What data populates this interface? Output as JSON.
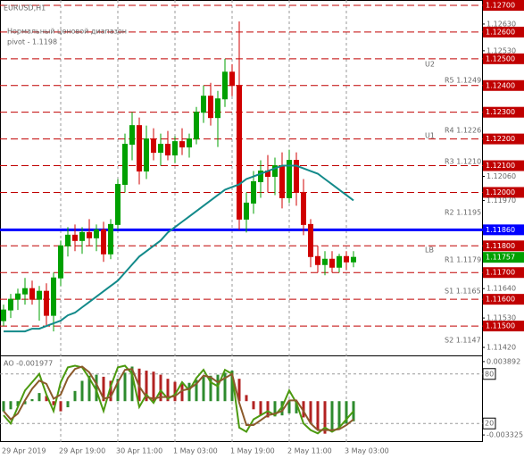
{
  "chart_data": [
    {
      "type": "candlestick",
      "title": "EURUSD,H1",
      "annotations": [
        "Нормальный ценовой диапазон",
        "pivot - 1.1198",
        "U2",
        "U1",
        "LB",
        "R5 1.1249",
        "R4 1.1226",
        "R3 1.1210",
        "R2 1.1195",
        "R1 1.1179",
        "S1 1.1165",
        "S2 1.1147"
      ],
      "categories": [
        "29 Apr 2019",
        null,
        null,
        null,
        null,
        null,
        null,
        null,
        "29 Apr 19:00",
        null,
        null,
        null,
        null,
        null,
        null,
        null,
        "30 Apr 11:00",
        null,
        null,
        null,
        null,
        null,
        null,
        null,
        "1 May 03:00",
        null,
        null,
        null,
        null,
        null,
        null,
        null,
        "1 May 19:00",
        null,
        null,
        null,
        null,
        null,
        null,
        null,
        "2 May 11:00",
        null,
        null,
        null,
        null,
        null,
        null,
        null,
        "3 May 03:00",
        null
      ],
      "open": [
        1.1152,
        1.1156,
        1.116,
        1.1162,
        1.1164,
        1.116,
        1.1163,
        1.1154,
        1.1168,
        1.118,
        1.1184,
        1.1182,
        1.1185,
        1.1183,
        1.1186,
        1.1177,
        1.1188,
        1.1203,
        1.1218,
        1.1225,
        1.1208,
        1.122,
        1.1215,
        1.1218,
        1.1214,
        1.1219,
        1.1217,
        1.122,
        1.123,
        1.1236,
        1.1228,
        1.1235,
        1.1245,
        1.124,
        1.119,
        1.1196,
        1.1204,
        1.1208,
        1.1206,
        1.121,
        1.1198,
        1.1212,
        1.12,
        1.1188,
        1.1176,
        1.1173,
        1.1175,
        1.1172,
        1.1176,
        1.1174
      ],
      "high": [
        1.1158,
        1.1162,
        1.1164,
        1.1168,
        1.1167,
        1.1165,
        1.1166,
        1.117,
        1.1182,
        1.1187,
        1.1188,
        1.1187,
        1.119,
        1.1188,
        1.1189,
        1.119,
        1.1205,
        1.1222,
        1.123,
        1.1228,
        1.1225,
        1.1224,
        1.1222,
        1.1223,
        1.1221,
        1.1224,
        1.1222,
        1.1232,
        1.124,
        1.1241,
        1.1238,
        1.125,
        1.1248,
        1.1264,
        1.12,
        1.1208,
        1.1212,
        1.1214,
        1.1213,
        1.1215,
        1.1216,
        1.1215,
        1.1205,
        1.119,
        1.118,
        1.1178,
        1.1178,
        1.1177,
        1.1178,
        1.1178
      ],
      "low": [
        1.115,
        1.1153,
        1.1156,
        1.1158,
        1.1158,
        1.1152,
        1.115,
        1.1148,
        1.1165,
        1.1176,
        1.1178,
        1.1177,
        1.118,
        1.1178,
        1.1174,
        1.1175,
        1.1186,
        1.12,
        1.1212,
        1.1203,
        1.1205,
        1.1212,
        1.121,
        1.1212,
        1.1211,
        1.1214,
        1.1213,
        1.1218,
        1.1226,
        1.1225,
        1.1217,
        1.1232,
        1.1236,
        1.1186,
        1.1185,
        1.1192,
        1.1198,
        1.12,
        1.1199,
        1.1194,
        1.1196,
        1.1195,
        1.1184,
        1.1172,
        1.117,
        1.1169,
        1.117,
        1.117,
        1.1171,
        1.1172
      ],
      "close": [
        1.1156,
        1.116,
        1.1162,
        1.1164,
        1.116,
        1.1163,
        1.1154,
        1.1168,
        1.118,
        1.1184,
        1.1182,
        1.1185,
        1.1183,
        1.1186,
        1.1177,
        1.1188,
        1.1203,
        1.1218,
        1.1225,
        1.1208,
        1.122,
        1.1215,
        1.1218,
        1.1214,
        1.1219,
        1.1217,
        1.122,
        1.123,
        1.1236,
        1.1228,
        1.1235,
        1.1245,
        1.124,
        1.119,
        1.1196,
        1.1204,
        1.1208,
        1.1206,
        1.121,
        1.1198,
        1.1212,
        1.12,
        1.1188,
        1.1176,
        1.1173,
        1.1175,
        1.1172,
        1.1176,
        1.1174,
        1.11757
      ],
      "up_color": "#00a000",
      "down_color": "#d00000",
      "ma": {
        "color": "#138a8a",
        "values": [
          1.1148,
          1.1148,
          1.1148,
          1.1148,
          1.1149,
          1.1149,
          1.115,
          1.1151,
          1.1152,
          1.1154,
          1.1155,
          1.1157,
          1.1159,
          1.1161,
          1.1163,
          1.1165,
          1.1167,
          1.117,
          1.1173,
          1.1176,
          1.1178,
          1.118,
          1.1182,
          1.1185,
          1.1187,
          1.1189,
          1.1191,
          1.1193,
          1.1195,
          1.1197,
          1.1199,
          1.1201,
          1.1202,
          1.1203,
          1.1205,
          1.1206,
          1.1207,
          1.1208,
          1.1209,
          1.121,
          1.121,
          1.121,
          1.1209,
          1.1208,
          1.1207,
          1.1205,
          1.1203,
          1.1201,
          1.1199,
          1.1197
        ]
      },
      "ylim": [
        1.1139,
        1.1272
      ],
      "yticks": [
        {
          "value": 1.1263,
          "label": "1.12630"
        },
        {
          "value": 1.1253,
          "label": "1.12530"
        },
        {
          "value": 1.1206,
          "label": "1.12060"
        },
        {
          "value": 1.1197,
          "label": "1.11970"
        },
        {
          "value": 1.1164,
          "label": "1.11640"
        },
        {
          "value": 1.1153,
          "label": "1.11530"
        },
        {
          "value": 1.1142,
          "label": "1.11420"
        }
      ],
      "levels": {
        "color": "#c00000",
        "values": [
          {
            "value": 1.127,
            "label": "1.12700"
          },
          {
            "value": 1.126,
            "label": "1.12600"
          },
          {
            "value": 1.125,
            "label": "1.12500"
          },
          {
            "value": 1.124,
            "label": "1.12400"
          },
          {
            "value": 1.123,
            "label": "1.12300"
          },
          {
            "value": 1.122,
            "label": "1.12200"
          },
          {
            "value": 1.121,
            "label": "1.12100"
          },
          {
            "value": 1.12,
            "label": "1.12000"
          },
          {
            "value": 1.118,
            "label": "1.11800"
          },
          {
            "value": 1.117,
            "label": "1.11700"
          },
          {
            "value": 1.116,
            "label": "1.11600"
          },
          {
            "value": 1.115,
            "label": "1.11500"
          }
        ]
      },
      "hline": {
        "value": 1.1186,
        "label": "1.11860",
        "color": "#0000ff"
      },
      "last_price": {
        "value": 1.11757,
        "label": "1.11757",
        "color": "#00a000"
      },
      "grid": true
    },
    {
      "type": "bar",
      "title": "AO -0.001977",
      "ao": {
        "up_color": "#2e8b2e",
        "down_color": "#b22222",
        "values": [
          -0.001,
          -0.0008,
          -0.0005,
          -0.0003,
          0.0002,
          0.0008,
          0.0005,
          -0.0004,
          -0.001,
          -0.0006,
          0.001,
          0.002,
          0.0025,
          0.0026,
          0.0024,
          0.002,
          0.0022,
          0.0028,
          0.0034,
          0.0032,
          0.003,
          0.0029,
          0.0026,
          0.0022,
          0.0019,
          0.0017,
          0.0018,
          0.0021,
          0.0024,
          0.0025,
          0.0026,
          0.0028,
          0.003,
          0.0022,
          0.0006,
          -0.0008,
          -0.0014,
          -0.0016,
          -0.0015,
          -0.0014,
          -0.0012,
          -0.0012,
          -0.0016,
          -0.0022,
          -0.0028,
          -0.0032,
          -0.003,
          -0.0026,
          -0.0022,
          -0.001977
        ]
      },
      "lines": [
        {
          "color": "#4c9a10",
          "axis": "y2",
          "values": [
            30,
            20,
            40,
            60,
            70,
            80,
            55,
            35,
            70,
            88,
            90,
            88,
            75,
            60,
            35,
            65,
            88,
            90,
            80,
            40,
            55,
            45,
            60,
            50,
            55,
            70,
            60,
            75,
            85,
            70,
            65,
            85,
            80,
            15,
            10,
            25,
            30,
            35,
            30,
            40,
            60,
            45,
            20,
            12,
            8,
            15,
            10,
            15,
            25,
            35
          ]
        },
        {
          "color": "#8b5a2b",
          "axis": "y2",
          "values": [
            35,
            25,
            32,
            48,
            62,
            72,
            68,
            50,
            55,
            75,
            86,
            89,
            82,
            68,
            50,
            52,
            70,
            85,
            86,
            65,
            52,
            50,
            52,
            52,
            53,
            60,
            62,
            68,
            78,
            76,
            70,
            75,
            80,
            45,
            18,
            18,
            24,
            30,
            32,
            35,
            48,
            48,
            35,
            20,
            12,
            12,
            12,
            13,
            18,
            25
          ]
        }
      ],
      "ylim": [
        -0.00402,
        0.00441
      ],
      "yticks": [
        0.003892,
        -0.003325
      ],
      "y2lim": [
        -2.5,
        101.4
      ],
      "y2ticks": [
        80,
        20
      ]
    }
  ]
}
